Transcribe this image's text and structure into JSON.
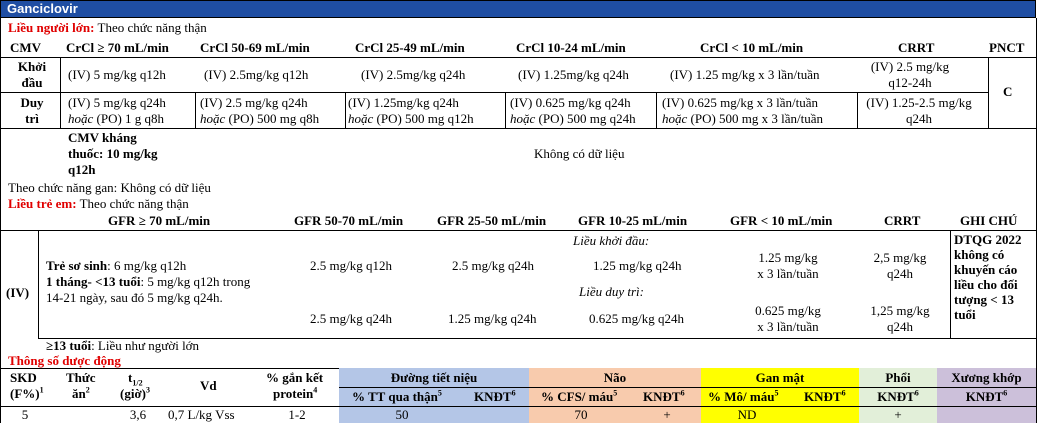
{
  "title": "Ganciclovir",
  "adult": {
    "heading_label": "Liều người lớn:",
    "heading_text": " Theo chức năng thận",
    "headers": [
      "CMV",
      "CrCl ≥ 70 mL/min",
      "CrCl 50-69 mL/min",
      "CrCl 25-49 mL/min",
      "CrCl 10-24 mL/min",
      "CrCl < 10 mL/min",
      "CRRT",
      "PNCT"
    ],
    "induction": {
      "label1": "Khởi",
      "label2": "đầu",
      "cells": [
        "(IV) 5 mg/kg q12h",
        "(IV) 2.5mg/kg q12h",
        "(IV) 2.5mg/kg q24h",
        "(IV) 1.25mg/kg q24h",
        "(IV) 1.25 mg/kg x 3 lần/tuần"
      ],
      "crrt1": "(IV) 2.5 mg/kg",
      "crrt2": "q12-24h"
    },
    "maintenance": {
      "label1": "Duy",
      "label2": "trì",
      "l1": [
        "(IV) 5 mg/kg q24h",
        "(IV) 2.5 mg/kg q24h",
        "(IV) 1.25mg/kg q24h",
        "(IV) 0.625 mg/kg q24h",
        "(IV) 0.625 mg/kg x 3 lần/tuần"
      ],
      "hoac": "hoặc",
      "l2": [
        " (PO) 1 g q8h",
        " (PO) 500 mg q8h",
        " (PO) 500 mg q12h",
        " (PO) 500 mg q24h",
        " (PO) 500 mg x 3 lần/tuần"
      ],
      "crrt1": "(IV) 1.25-2.5 mg/kg",
      "crrt2": "q24h"
    },
    "pnct_value": "C",
    "resistant": {
      "l1": "CMV kháng",
      "l2": "thuốc: 10 mg/kg",
      "l3": "q12h",
      "value": "Không có dữ liệu"
    },
    "hepatic": "Theo chức năng gan: Không có dữ liệu"
  },
  "peds": {
    "heading_label": "Liều trẻ em:",
    "heading_text": " Theo chức năng thận",
    "headers": [
      "GFR ≥ 70 mL/min",
      "GFR 50-70 mL/min",
      "GFR 25-50 mL/min",
      "GFR 10-25 mL/min",
      "GFR < 10 mL/min",
      "CRRT",
      "GHI CHÚ"
    ],
    "route": "(IV)",
    "neonate_label": "Trẻ sơ sinh",
    "neonate_text": ": 6 mg/kg q12h",
    "child_label": "1 tháng- <13 tuổi",
    "child_text": ": 5 mg/kg q12h trong",
    "child_text2": "14-21 ngày, sau đó 5 mg/kg q24h.",
    "induction_label": "Liều khởi đầu:",
    "maintenance_label": "Liều duy trì:",
    "induction": [
      "2.5 mg/kg q12h",
      "2.5 mg/kg q24h",
      "1.25 mg/kg q24h"
    ],
    "induction_gfr10_1": "1.25 mg/kg",
    "induction_gfr10_2": "x 3 lần/tuần",
    "induction_crrt1": "2,5 mg/kg",
    "induction_crrt2": "q24h",
    "maintenance": [
      "2.5 mg/kg q24h",
      "1.25 mg/kg q24h",
      "0.625 mg/kg q24h"
    ],
    "maintenance_gfr10_1": "0.625 mg/kg",
    "maintenance_gfr10_2": "x 3 lần/tuần",
    "maintenance_crrt1": "1,25 mg/kg",
    "maintenance_crrt2": "q24h",
    "note": [
      "DTQG 2022",
      "không có",
      "khuyến cáo",
      "liều cho đối",
      "tượng < 13",
      "tuổi"
    ],
    "over13_label": "≥13 tuổi",
    "over13_text": ": Liều như người lớn"
  },
  "pk": {
    "heading": "Thông số dược động",
    "col_skd1": "SKD",
    "col_skd2": "(F%)",
    "col_food1": "Thức",
    "col_food2": "ăn",
    "col_t1": "t",
    "col_t1_sub": "1/2",
    "col_t2": "(giờ)",
    "col_vd": "Vd",
    "col_prot1": "% gắn kết",
    "col_prot2": "protein",
    "sup": [
      "1",
      "2",
      "3",
      "4",
      "5",
      "6",
      "5",
      "6",
      "5",
      "6",
      "6",
      "6"
    ],
    "urinary": "Đường tiết niệu",
    "brain": "Não",
    "liver": "Gan mật",
    "lung": "Phổi",
    "bone": "Xương khớp",
    "sub_urinary1": "% TT qua thận",
    "sub_kndt": "KNĐT",
    "sub_brain1": "% CFS/ máu",
    "sub_liver1": "% Mô/ máu",
    "values": {
      "skd": "5",
      "food": "",
      "t12": "3,6",
      "vd": "0,7 L/kg Vss",
      "protein": "1-2",
      "tt_kidney": "50",
      "kndt_urinary": "",
      "cfs": "70",
      "kndt_brain": "+",
      "mo_mau": "ND",
      "kndt_liver": "",
      "kndt_lung": "+",
      "kndt_bone": ""
    },
    "colors": {
      "urinary": "#b4c6e7",
      "brain": "#f8cbad",
      "liver": "#ffff00",
      "lung": "#e2efd9",
      "bone": "#ccc0da"
    }
  }
}
